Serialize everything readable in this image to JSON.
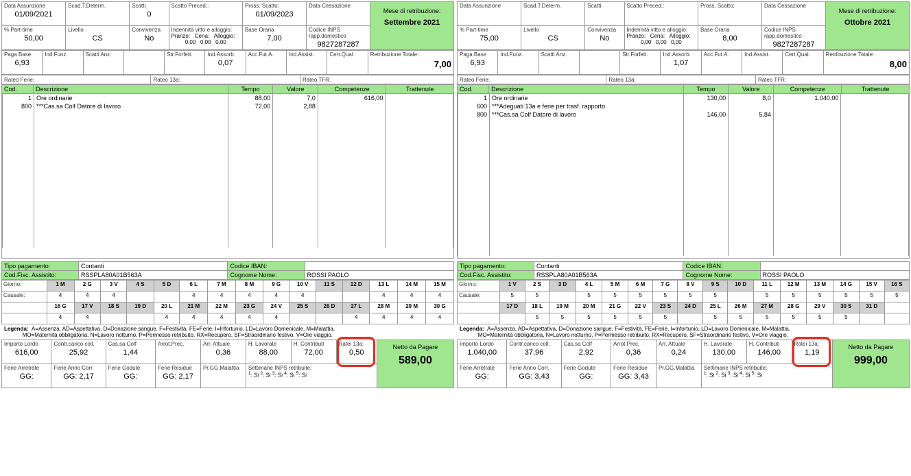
{
  "colors": {
    "green": "#9fe68f",
    "grey": "#d0d0d0",
    "border": "#999999",
    "red": "#e03020",
    "text": "#222222"
  },
  "labels": {
    "data_assunzione": "Data Assunzione",
    "scad_t_determ": "Scad.T.Determ.",
    "scatti": "Scatti",
    "scatto_preced": "Scatto Preced.:",
    "pross_scatto": "Pross. Scatto:",
    "data_cessazione": "Data Cessazione",
    "mese_retrib": "Mese di retribuzione:",
    "pct_parttime": "% Part-time",
    "livello": "Livello",
    "convivenza": "Convivenza",
    "indennita": "Indennità vitto e alloggio:",
    "pranzo": "Pranzo:",
    "cena": "Cena:",
    "alloggio": "Alloggio:",
    "base_oraria": "Base Oraria",
    "codice_inps": "Codice INPS rapp.domestico",
    "paga_base": "Paga Base",
    "ind_funz": "Ind.Funz.",
    "scatti_anz": "Scatti Anz.",
    "str_forfet": "Str.Forfett.",
    "ind_assorb": "Ind.Assorb.",
    "acc_fut": "Acc.Fut.A.",
    "ind_assist": "Ind.Assist.",
    "cert_qual": "Cert.Qual.",
    "retrib_totale": "Retribuzione Totale:",
    "rateo_ferie": "Rateo Ferie:",
    "rateo_13a": "Rateo 13a:",
    "rateo_tfr": "Rateo TFR:",
    "cod": "Cod.",
    "descrizione": "Descrizione",
    "tempo": "Tempo",
    "valore": "Valore",
    "competenze": "Competenze",
    "trattenute": "Trattenute",
    "tipo_pagamento": "Tipo pagamento:",
    "codice_iban": "Codice IBAN:",
    "cod_fisc": "Cod.Fisc. Assistito:",
    "cognome_nome": "Cognome Nome:",
    "giorno": "Giorno:",
    "causale": "Causale:",
    "legenda": "Legenda:",
    "legenda_text1": "A=Assenza, AD=Aspettativa, D=Donazione sangue, F=Festività, FE=Ferie, I=Infortunio, LD=Lavoro Domenicale, M=Malattia,",
    "legenda_text2": "MO=Maternità obbligatoria, N=Lavoro notturno, P=Permesso retribuito, RX=Recupero, SF=Straordinario festivo, V=Ore viaggio.",
    "importo_lordo": "Importo Lordo",
    "contr_carico": "Contr.carico coll.",
    "cassa_colf": "Cas.sa Colf",
    "arrot_prec": "Arrot.Prec.",
    "arr_attuale": "Arr. Attuale",
    "h_lavorate": "H. Lavorate",
    "h_contributi": "H. Contributi",
    "ratei_13a": "Ratei 13a:",
    "ferie_arretrate": "Ferie Arretrate",
    "ferie_anno_corr": "Ferie Anno Corr.",
    "ferie_godute": "Ferie Godute",
    "ferie_residue": "Ferie Residue",
    "pr_gg_malattia": "Pr.GG.Malattia",
    "settimane_inps": "Settimane INPS retribuite:",
    "netto_pagare": "Netto da Pagare",
    "gg": "GG:",
    "si": "Si"
  },
  "left": {
    "month": "Settembre 2021",
    "data_assunzione": "01/09/2021",
    "scad_t_determ": "",
    "scatti": "0",
    "scatto_preced": "",
    "pross_scatto": "01/09/2023",
    "data_cessazione": "",
    "pct_parttime": "50,00",
    "livello": "CS",
    "convivenza": "No",
    "pranzo": "0,00",
    "cena": "0,00",
    "alloggio": "0,00",
    "base_oraria": "7,00",
    "codice_inps": "9827287287",
    "paga_base": "6,93",
    "ind_funz": "",
    "scatti_anz": "",
    "str_forfet": "",
    "ind_assorb": "0,07",
    "acc_fut": "",
    "ind_assist": "",
    "cert_qual": "",
    "retrib_totale": "7,00",
    "rateo_ferie": "",
    "rateo_13a": "",
    "rateo_tfr": "",
    "lines": [
      {
        "cod": "1",
        "desc": "Ore ordinarie",
        "tempo": "88,00",
        "valore": "7,0",
        "comp": "616,00",
        "trat": ""
      },
      {
        "cod": "800",
        "desc": "***Cas.sa Colf Datore di lavoro",
        "tempo": "72,00",
        "valore": "2,88",
        "comp": "",
        "trat": ""
      }
    ],
    "tipo_pagamento": "Contanti",
    "codice_iban": "",
    "cod_fisc": "RSSPLA80A01B563A",
    "cognome_nome": "ROSSI PAOLO",
    "cal_days": [
      "1 M",
      "2 G",
      "3 V",
      "4 S",
      "5 D",
      "6 L",
      "7 M",
      "8 M",
      "9 G",
      "10 V",
      "11 S",
      "12 D",
      "13 L",
      "14 M",
      "15 M",
      "16 G",
      "17 V",
      "18 S",
      "19 D",
      "20 L",
      "21 M",
      "22 M",
      "23 G",
      "24 V",
      "25 S",
      "26 D",
      "27 L",
      "28 M",
      "29 M",
      "30 G"
    ],
    "cal_vals": [
      "4",
      "4",
      "4",
      "",
      "",
      "4",
      "4",
      "4",
      "4",
      "4",
      "",
      "",
      "4",
      "4",
      "4",
      "4",
      "4",
      "",
      "",
      "4",
      "4",
      "4",
      "4",
      "4",
      "",
      "",
      "4",
      "4",
      "4",
      "4"
    ],
    "cal_grey": [
      1,
      0,
      0,
      1,
      1,
      0,
      0,
      0,
      0,
      0,
      1,
      1,
      0,
      0,
      0,
      0,
      1,
      1,
      1,
      0,
      1,
      0,
      1,
      0,
      1,
      1,
      1,
      0,
      0,
      0
    ],
    "importo_lordo": "616,00",
    "contr_carico": "25,92",
    "cassa_colf": "1,44",
    "arrot_prec": "",
    "arr_attuale": "0,36",
    "h_lavorate": "88,00",
    "h_contributi": "72,00",
    "ratei_13a": "0,50",
    "ferie_arretrate": "",
    "ferie_anno_corr": "2,17",
    "ferie_godute": "",
    "ferie_residue": "2,17",
    "pr_gg_malattia": "",
    "sett_inps": [
      "Si",
      "Si",
      "Si",
      "Si",
      "Si"
    ],
    "netto": "589,00"
  },
  "right": {
    "month": "Ottobre 2021",
    "data_assunzione": "",
    "scad_t_determ": "",
    "scatti": "",
    "scatto_preced": "",
    "pross_scatto": "",
    "data_cessazione": "",
    "pct_parttime": "75,00",
    "livello": "CS",
    "convivenza": "No",
    "pranzo": "0,00",
    "cena": "0,00",
    "alloggio": "0,00",
    "base_oraria": "8,00",
    "codice_inps": "9827287287",
    "paga_base": "6,93",
    "ind_funz": "",
    "scatti_anz": "",
    "str_forfet": "",
    "ind_assorb": "1,07",
    "acc_fut": "",
    "ind_assist": "",
    "cert_qual": "",
    "retrib_totale": "8,00",
    "rateo_ferie": "",
    "rateo_13a": "",
    "rateo_tfr": "",
    "lines": [
      {
        "cod": "1",
        "desc": "Ore ordinarie",
        "tempo": "130,00",
        "valore": "8,0",
        "comp": "1.040,00",
        "trat": ""
      },
      {
        "cod": "600",
        "desc": "***Adeguati 13a e ferie per trasf. rapporto",
        "tempo": "",
        "valore": "",
        "comp": "",
        "trat": ""
      },
      {
        "cod": "800",
        "desc": "***Cas.sa Colf Datore di lavoro",
        "tempo": "146,00",
        "valore": "5,84",
        "comp": "",
        "trat": ""
      }
    ],
    "tipo_pagamento": "Contanti",
    "codice_iban": "",
    "cod_fisc": "RSSPLA80A01B563A",
    "cognome_nome": "ROSSI PAOLO",
    "cal_days": [
      "1 V",
      "2 S",
      "3 D",
      "4 L",
      "5 M",
      "6 M",
      "7 G",
      "8 V",
      "9 S",
      "10 D",
      "11 L",
      "12 M",
      "13 M",
      "14 G",
      "15 V",
      "16 S",
      "17 D",
      "18 L",
      "19 M",
      "20 M",
      "21 G",
      "22 V",
      "23 S",
      "24 D",
      "25 L",
      "26 M",
      "27 M",
      "28 G",
      "29 V",
      "30 S",
      "31 D"
    ],
    "cal_vals": [
      "5",
      "5",
      "",
      "5",
      "5",
      "5",
      "5",
      "5",
      "5",
      "",
      "5",
      "5",
      "5",
      "5",
      "5",
      "5",
      "",
      "5",
      "5",
      "5",
      "5",
      "5",
      "5",
      "",
      "5",
      "5",
      "5",
      "5",
      "5",
      "5",
      ""
    ],
    "cal_grey": [
      1,
      0,
      1,
      0,
      0,
      0,
      0,
      0,
      1,
      1,
      0,
      0,
      0,
      0,
      0,
      1,
      1,
      0,
      0,
      0,
      0,
      0,
      1,
      1,
      0,
      0,
      1,
      0,
      0,
      1,
      1
    ],
    "importo_lordo": "1.040,00",
    "contr_carico": "37,96",
    "cassa_colf": "2,92",
    "arrot_prec": "0,36",
    "arr_attuale": "0,24",
    "h_lavorate": "130,00",
    "h_contributi": "146,00",
    "ratei_13a": "1,19",
    "ferie_arretrate": "",
    "ferie_anno_corr": "3,43",
    "ferie_godute": "",
    "ferie_residue": "3,43",
    "pr_gg_malattia": "",
    "sett_inps": [
      "Si",
      "Si",
      "Si",
      "Si",
      "Si"
    ],
    "netto": "999,00"
  }
}
